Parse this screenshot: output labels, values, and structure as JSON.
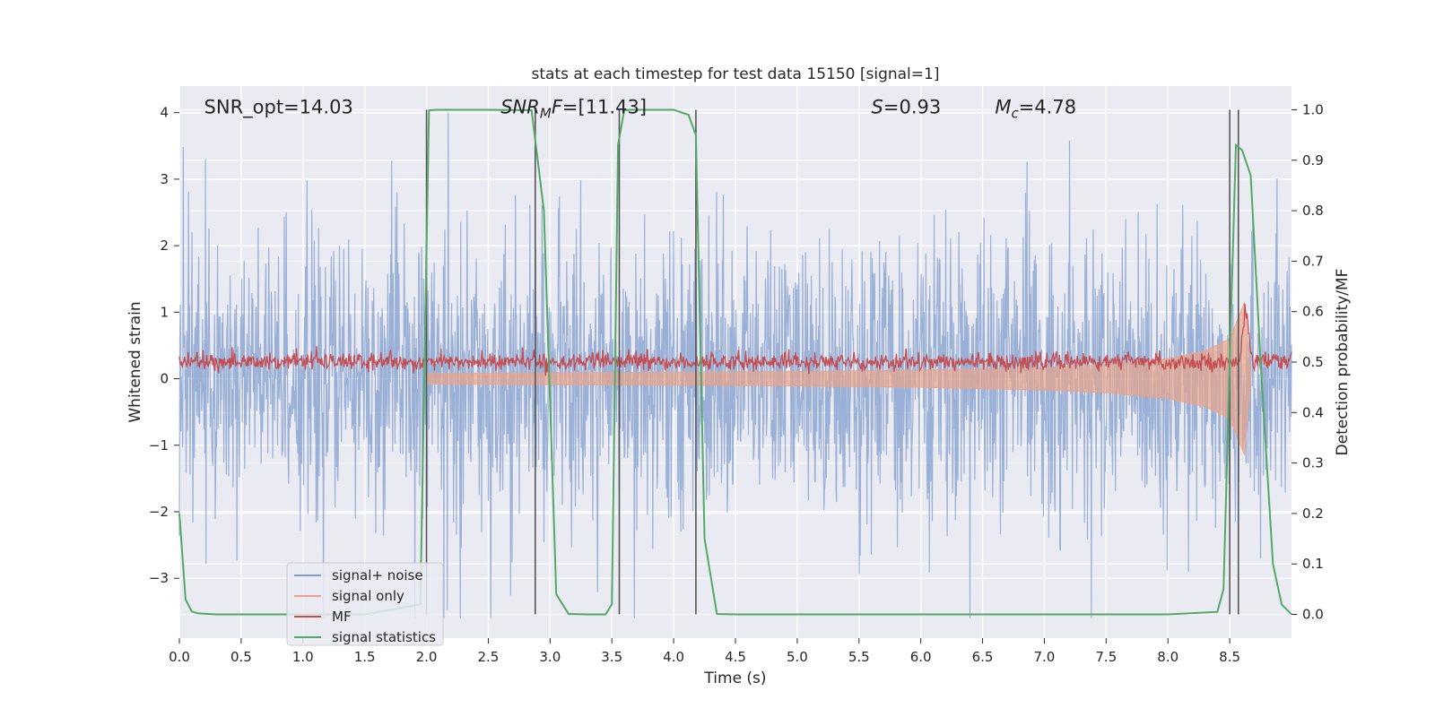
{
  "chart_data": {
    "type": "line",
    "title": "stats at each timestep for test data 15150 [signal=1]",
    "xlabel": "Time (s)",
    "ylabel_left": "Whitened strain",
    "ylabel_right": "Detection probability/MF",
    "xlim": [
      0.0,
      9.0
    ],
    "ylim_left": [
      -3.9,
      4.4
    ],
    "ylim_right": [
      -0.047,
      1.047
    ],
    "x_ticks": [
      "0.0",
      "0.5",
      "1.0",
      "1.5",
      "2.0",
      "2.5",
      "3.0",
      "3.5",
      "4.0",
      "4.5",
      "5.0",
      "5.5",
      "6.0",
      "6.5",
      "7.0",
      "7.5",
      "8.0",
      "8.5"
    ],
    "x_tick_values": [
      0.0,
      0.5,
      1.0,
      1.5,
      2.0,
      2.5,
      3.0,
      3.5,
      4.0,
      4.5,
      5.0,
      5.5,
      6.0,
      6.5,
      7.0,
      7.5,
      8.0,
      8.5
    ],
    "y_left_ticks": [
      "4",
      "3",
      "2",
      "1",
      "0",
      "−1",
      "−2",
      "−3"
    ],
    "y_left_tick_values": [
      4,
      3,
      2,
      1,
      0,
      -1,
      -2,
      -3
    ],
    "y_right_ticks": [
      "1.0",
      "0.9",
      "0.8",
      "0.7",
      "0.6",
      "0.5",
      "0.4",
      "0.3",
      "0.2",
      "0.1",
      "0.0"
    ],
    "y_right_tick_values": [
      1.0,
      0.9,
      0.8,
      0.7,
      0.6,
      0.5,
      0.4,
      0.3,
      0.2,
      0.1,
      0.0
    ],
    "grid": true,
    "legend_position": "lower-left",
    "annotations": [
      {
        "text": "SNR_opt=14.03",
        "x": 0.2,
        "y": 4.1
      },
      {
        "text": "SNR",
        "sub": "M",
        "tail": "F=[11.43]",
        "x": 2.6,
        "y": 4.1,
        "italic": true
      },
      {
        "text": "S",
        "tail": "=0.93",
        "x": 5.6,
        "y": 4.1,
        "italic": true
      },
      {
        "text": "M",
        "sub": "c",
        "tail": "=4.78",
        "x": 6.6,
        "y": 4.1,
        "italic": true
      }
    ],
    "series": [
      {
        "name": "signal+ noise",
        "color": "#7f9ccc",
        "axis": "left",
        "description": "whitened noise with embedded signal, roughly within ±2.8 with spikes up to 4 and down to -3.6",
        "noise_amplitude": 1.0,
        "x_range": [
          0.0,
          9.0
        ]
      },
      {
        "name": "signal only",
        "color": "#e8a48a",
        "axis": "left",
        "description": "chirp envelope growing toward merger near 8.62 s",
        "envelope_x": [
          2.0,
          3.0,
          4.0,
          5.0,
          6.0,
          7.0,
          7.5,
          8.0,
          8.3,
          8.5,
          8.62,
          8.67
        ],
        "envelope_y": [
          0.08,
          0.09,
          0.1,
          0.11,
          0.13,
          0.17,
          0.21,
          0.3,
          0.42,
          0.6,
          1.15,
          0.05
        ]
      },
      {
        "name": "MF",
        "color": "#c44e52",
        "axis": "right",
        "description": "matched-filter output near 0.5 with small fluctuations, peak near merger",
        "baseline": 0.5,
        "peak_x": 8.63,
        "peak_y": 0.6
      },
      {
        "name": "signal statistics",
        "color": "#55a868",
        "axis": "right",
        "x": [
          0.0,
          0.05,
          0.1,
          0.15,
          0.3,
          0.5,
          1.0,
          1.5,
          1.95,
          2.02,
          2.08,
          2.5,
          2.85,
          2.9,
          2.95,
          3.05,
          3.15,
          3.3,
          3.45,
          3.5,
          3.55,
          3.6,
          3.65,
          4.0,
          4.12,
          4.18,
          4.25,
          4.35,
          4.5,
          5.0,
          6.0,
          7.0,
          8.0,
          8.4,
          8.45,
          8.5,
          8.55,
          8.6,
          8.67,
          8.75,
          8.85,
          8.92,
          9.0
        ],
        "y": [
          0.2,
          0.03,
          0.006,
          0.002,
          0.0,
          0.0,
          0.0,
          0.0,
          0.02,
          0.999,
          1.0,
          1.0,
          0.999,
          0.9,
          0.8,
          0.04,
          0.001,
          0.0,
          0.0,
          0.02,
          0.93,
          0.999,
          1.0,
          1.0,
          0.99,
          0.95,
          0.15,
          0.001,
          0.0,
          0.0,
          0.0,
          0.0,
          0.0,
          0.005,
          0.05,
          0.5,
          0.93,
          0.92,
          0.87,
          0.5,
          0.1,
          0.02,
          0.0
        ]
      }
    ],
    "vertical_lines_x": [
      2.0,
      2.88,
      3.56,
      4.18,
      8.5,
      8.57
    ],
    "vertical_line_color": "#555555"
  }
}
